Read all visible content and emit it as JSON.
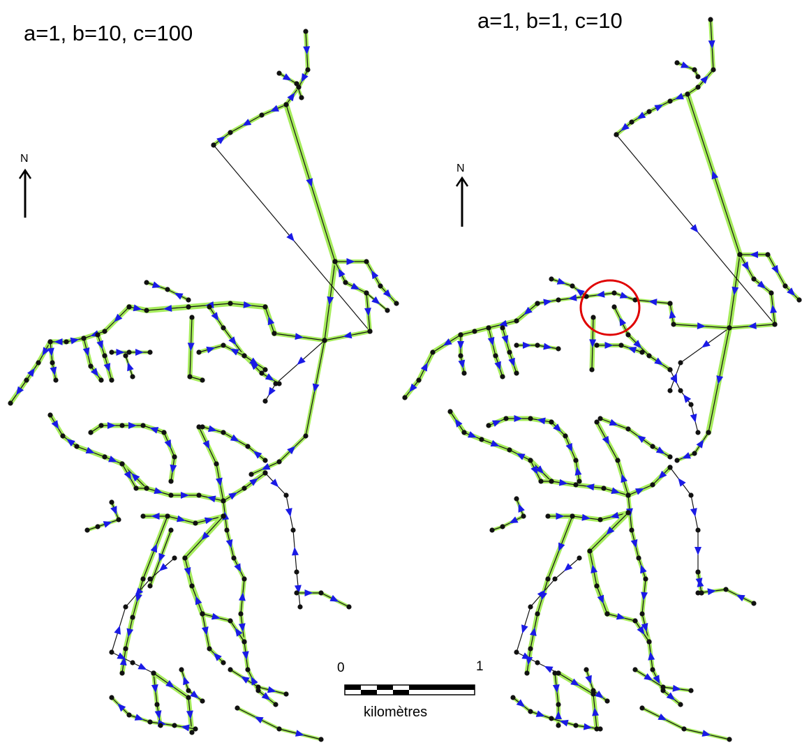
{
  "panels": [
    {
      "title": "a=1, b=10, c=100"
    },
    {
      "title": "a=1, b=1, c=10"
    }
  ],
  "north_arrow": {
    "label": "N"
  },
  "scale_bar": {
    "start": "0",
    "end": "1",
    "unit": "kilomètres"
  },
  "colors": {
    "flow_edge": "#a6ec5c",
    "link": "#111111",
    "node": "#111111",
    "flow_arrow": "#1a1ae6",
    "highlight_circle": "#e00000"
  }
}
